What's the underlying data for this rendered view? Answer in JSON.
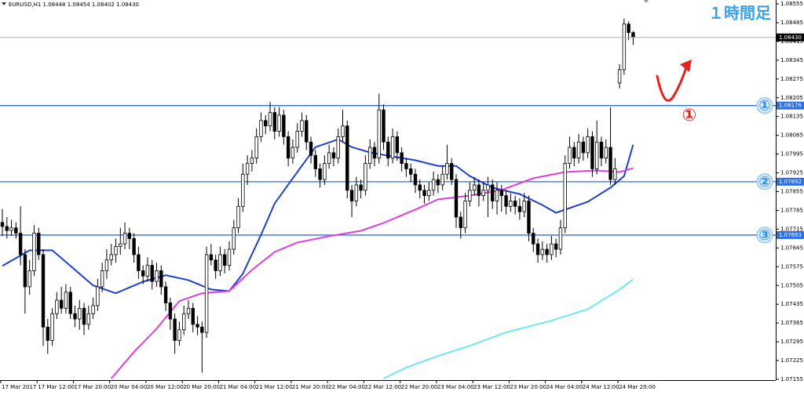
{
  "chart_data": {
    "type": "candlestick",
    "header": "EURUSD,H1  1.08448 1.08454 1.08402 1.08430",
    "annotation_title": "１時間足",
    "annotation_mark": "①",
    "ylim": [
      1.07155,
      1.08555
    ],
    "yticks": [
      1.08555,
      1.08485,
      1.08415,
      1.08345,
      1.08275,
      1.08205,
      1.08135,
      1.08065,
      1.07995,
      1.07925,
      1.07855,
      1.07785,
      1.07715,
      1.07645,
      1.07575,
      1.07505,
      1.07435,
      1.07365,
      1.07295,
      1.07225,
      1.07155
    ],
    "xlabels": [
      "17 Mar 2017",
      "17 Mar 12:00",
      "17 Mar 20:00",
      "20 Mar 04:00",
      "20 Mar 12:00",
      "20 Mar 20:00",
      "21 Mar 04:00",
      "21 Mar 12:00",
      "21 Mar 20:00",
      "22 Mar 04:00",
      "22 Mar 12:00",
      "22 Mar 20:00",
      "23 Mar 04:00",
      "23 Mar 12:00",
      "23 Mar 20:00",
      "24 Mar 04:00",
      "24 Mar 12:00",
      "24 Mar 20:00"
    ],
    "current_price": {
      "value": 1.0843,
      "label": "1.08430"
    },
    "levels": [
      1.08176,
      1.07892,
      1.07693
    ],
    "level_labels": [
      "①",
      "②",
      "③"
    ],
    "level_color": "#2f6fe0",
    "up_color": "#ffffff",
    "down_color": "#000000",
    "ohlc": [
      [
        1.0774,
        1.0779,
        1.0769,
        1.07725
      ],
      [
        1.07725,
        1.0776,
        1.0768,
        1.0771
      ],
      [
        1.0771,
        1.0775,
        1.0769,
        1.0772
      ],
      [
        1.0772,
        1.0774,
        1.0768,
        1.077
      ],
      [
        1.077,
        1.078,
        1.0758,
        1.0762
      ],
      [
        1.0762,
        1.0764,
        1.074,
        1.075
      ],
      [
        1.075,
        1.076,
        1.0747,
        1.0756
      ],
      [
        1.0756,
        1.0773,
        1.0754,
        1.077
      ],
      [
        1.077,
        1.0772,
        1.076,
        1.0762
      ],
      [
        1.0762,
        1.0764,
        1.0728,
        1.0735
      ],
      [
        1.0735,
        1.0738,
        1.0725,
        1.073
      ],
      [
        1.073,
        1.0742,
        1.0728,
        1.074
      ],
      [
        1.074,
        1.0748,
        1.0738,
        1.0745
      ],
      [
        1.0745,
        1.075,
        1.074,
        1.0742
      ],
      [
        1.0742,
        1.0751,
        1.074,
        1.0748
      ],
      [
        1.0748,
        1.075,
        1.0738,
        1.074
      ],
      [
        1.074,
        1.0743,
        1.0735,
        1.0738
      ],
      [
        1.0738,
        1.0745,
        1.0734,
        1.0742
      ],
      [
        1.0742,
        1.0744,
        1.0732,
        1.0736
      ],
      [
        1.0736,
        1.0743,
        1.0734,
        1.074
      ],
      [
        1.074,
        1.0746,
        1.0738,
        1.0743
      ],
      [
        1.0743,
        1.0753,
        1.0741,
        1.075
      ],
      [
        1.075,
        1.0759,
        1.0748,
        1.0756
      ],
      [
        1.0756,
        1.0764,
        1.0753,
        1.076
      ],
      [
        1.076,
        1.0766,
        1.0758,
        1.0762
      ],
      [
        1.0762,
        1.0768,
        1.0759,
        1.0765
      ],
      [
        1.0765,
        1.0772,
        1.0762,
        1.0766
      ],
      [
        1.0766,
        1.0774,
        1.0764,
        1.077
      ],
      [
        1.077,
        1.0772,
        1.0764,
        1.0768
      ],
      [
        1.0768,
        1.077,
        1.0759,
        1.0762
      ],
      [
        1.0762,
        1.0765,
        1.0753,
        1.0756
      ],
      [
        1.0756,
        1.0758,
        1.0751,
        1.0754
      ],
      [
        1.0754,
        1.0761,
        1.0752,
        1.0758
      ],
      [
        1.0758,
        1.076,
        1.0749,
        1.0752
      ],
      [
        1.0752,
        1.0759,
        1.075,
        1.0756
      ],
      [
        1.0756,
        1.0758,
        1.0747,
        1.075
      ],
      [
        1.075,
        1.0752,
        1.0741,
        1.0744
      ],
      [
        1.0744,
        1.0746,
        1.0734,
        1.0738
      ],
      [
        1.0738,
        1.074,
        1.0725,
        1.073
      ],
      [
        1.073,
        1.0737,
        1.0728,
        1.0734
      ],
      [
        1.0734,
        1.0743,
        1.0732,
        1.074
      ],
      [
        1.074,
        1.0745,
        1.0738,
        1.0742
      ],
      [
        1.0742,
        1.0744,
        1.0733,
        1.0736
      ],
      [
        1.0736,
        1.0739,
        1.0732,
        1.0735
      ],
      [
        1.0735,
        1.0737,
        1.0718,
        1.0733
      ],
      [
        1.0733,
        1.0765,
        1.0731,
        1.0762
      ],
      [
        1.0762,
        1.0766,
        1.0758,
        1.076
      ],
      [
        1.076,
        1.0762,
        1.0753,
        1.0756
      ],
      [
        1.0756,
        1.0765,
        1.0754,
        1.0762
      ],
      [
        1.0762,
        1.0764,
        1.0755,
        1.0758
      ],
      [
        1.0758,
        1.0767,
        1.0756,
        1.0764
      ],
      [
        1.0764,
        1.0775,
        1.0762,
        1.0772
      ],
      [
        1.0772,
        1.0783,
        1.077,
        1.078
      ],
      [
        1.078,
        1.0796,
        1.0778,
        1.0792
      ],
      [
        1.0792,
        1.0799,
        1.0788,
        1.0796
      ],
      [
        1.0796,
        1.0801,
        1.0793,
        1.0798
      ],
      [
        1.0798,
        1.0809,
        1.0796,
        1.0806
      ],
      [
        1.0806,
        1.0815,
        1.0804,
        1.0812
      ],
      [
        1.0812,
        1.0814,
        1.0807,
        1.081
      ],
      [
        1.081,
        1.0819,
        1.0808,
        1.0815
      ],
      [
        1.0815,
        1.0817,
        1.0805,
        1.0808
      ],
      [
        1.0808,
        1.0817,
        1.0806,
        1.0814
      ],
      [
        1.0814,
        1.0816,
        1.0803,
        1.0806
      ],
      [
        1.0806,
        1.0808,
        1.0795,
        1.0798
      ],
      [
        1.0798,
        1.0805,
        1.0796,
        1.0802
      ],
      [
        1.0802,
        1.0811,
        1.08,
        1.0808
      ],
      [
        1.0808,
        1.0815,
        1.0806,
        1.0812
      ],
      [
        1.0812,
        1.0814,
        1.0801,
        1.0804
      ],
      [
        1.0804,
        1.0806,
        1.0796,
        1.0799
      ],
      [
        1.0799,
        1.0801,
        1.0791,
        1.0794
      ],
      [
        1.0794,
        1.0796,
        1.0787,
        1.079
      ],
      [
        1.079,
        1.0799,
        1.0788,
        1.0796
      ],
      [
        1.0796,
        1.0803,
        1.0794,
        1.08
      ],
      [
        1.08,
        1.0802,
        1.0795,
        1.0798
      ],
      [
        1.0798,
        1.0809,
        1.0796,
        1.0806
      ],
      [
        1.0806,
        1.0816,
        1.0804,
        1.081
      ],
      [
        1.081,
        1.0812,
        1.0783,
        1.0786
      ],
      [
        1.0786,
        1.0788,
        1.0776,
        1.0782
      ],
      [
        1.0782,
        1.0791,
        1.078,
        1.0788
      ],
      [
        1.0788,
        1.079,
        1.0783,
        1.0786
      ],
      [
        1.0786,
        1.0799,
        1.0784,
        1.0796
      ],
      [
        1.0796,
        1.0805,
        1.0794,
        1.0802
      ],
      [
        1.0802,
        1.0804,
        1.0795,
        1.0798
      ],
      [
        1.0798,
        1.0822,
        1.0796,
        1.0816
      ],
      [
        1.0816,
        1.0818,
        1.0801,
        1.0804
      ],
      [
        1.0804,
        1.0806,
        1.0795,
        1.0798
      ],
      [
        1.0798,
        1.0809,
        1.0796,
        1.0806
      ],
      [
        1.0806,
        1.0808,
        1.0797,
        1.08
      ],
      [
        1.08,
        1.0802,
        1.0793,
        1.0796
      ],
      [
        1.0796,
        1.0798,
        1.0791,
        1.0794
      ],
      [
        1.0794,
        1.0796,
        1.0789,
        1.0792
      ],
      [
        1.0792,
        1.0794,
        1.0785,
        1.0788
      ],
      [
        1.0788,
        1.079,
        1.0783,
        1.0786
      ],
      [
        1.0786,
        1.0788,
        1.0781,
        1.0784
      ],
      [
        1.0784,
        1.0789,
        1.0782,
        1.0786
      ],
      [
        1.0786,
        1.0793,
        1.0784,
        1.079
      ],
      [
        1.079,
        1.0792,
        1.0785,
        1.0788
      ],
      [
        1.0788,
        1.0795,
        1.0786,
        1.0792
      ],
      [
        1.0792,
        1.0803,
        1.079,
        1.0796
      ],
      [
        1.0796,
        1.0798,
        1.0788,
        1.079
      ],
      [
        1.079,
        1.0792,
        1.0772,
        1.0776
      ],
      [
        1.0776,
        1.0778,
        1.0768,
        1.0772
      ],
      [
        1.0772,
        1.0785,
        1.077,
        1.0782
      ],
      [
        1.0782,
        1.0789,
        1.078,
        1.0786
      ],
      [
        1.0786,
        1.0791,
        1.0784,
        1.0788
      ],
      [
        1.0788,
        1.079,
        1.078,
        1.0784
      ],
      [
        1.0784,
        1.0789,
        1.0782,
        1.0786
      ],
      [
        1.0786,
        1.0791,
        1.0776,
        1.0788
      ],
      [
        1.0788,
        1.079,
        1.0779,
        1.0782
      ],
      [
        1.0782,
        1.0789,
        1.0777,
        1.0786
      ],
      [
        1.0786,
        1.0788,
        1.0778,
        1.0784
      ],
      [
        1.0784,
        1.0786,
        1.0777,
        1.078
      ],
      [
        1.078,
        1.0785,
        1.0778,
        1.0782
      ],
      [
        1.0782,
        1.0784,
        1.0777,
        1.078
      ],
      [
        1.078,
        1.0783,
        1.0775,
        1.0778
      ],
      [
        1.0778,
        1.0785,
        1.0776,
        1.0782
      ],
      [
        1.0782,
        1.0784,
        1.0767,
        1.077
      ],
      [
        1.077,
        1.0772,
        1.0763,
        1.0766
      ],
      [
        1.0766,
        1.0768,
        1.0759,
        1.0762
      ],
      [
        1.0762,
        1.0767,
        1.076,
        1.0764
      ],
      [
        1.0764,
        1.0766,
        1.0759,
        1.0762
      ],
      [
        1.0762,
        1.0769,
        1.076,
        1.0766
      ],
      [
        1.0766,
        1.0768,
        1.0761,
        1.0764
      ],
      [
        1.0764,
        1.0775,
        1.0762,
        1.0772
      ],
      [
        1.0772,
        1.0799,
        1.077,
        1.0796
      ],
      [
        1.0796,
        1.0806,
        1.0794,
        1.0802
      ],
      [
        1.0802,
        1.0804,
        1.0795,
        1.0798
      ],
      [
        1.0798,
        1.0807,
        1.0796,
        1.0804
      ],
      [
        1.0804,
        1.0806,
        1.0797,
        1.08
      ],
      [
        1.08,
        1.0809,
        1.0798,
        1.0806
      ],
      [
        1.0806,
        1.0808,
        1.0791,
        1.0794
      ],
      [
        1.0794,
        1.0812,
        1.0792,
        1.0804
      ],
      [
        1.0804,
        1.0806,
        1.0795,
        1.0798
      ],
      [
        1.0798,
        1.0805,
        1.0796,
        1.0802
      ],
      [
        1.0802,
        1.0817,
        1.0788,
        1.079
      ],
      [
        1.079,
        1.0798,
        1.0788,
        1.0794
      ],
      [
        1.0826,
        1.0833,
        1.0824,
        1.0831
      ],
      [
        1.0831,
        1.085,
        1.0829,
        1.0848
      ],
      [
        1.0848,
        1.0849,
        1.0842,
        1.08448
      ],
      [
        1.08448,
        1.08454,
        1.08402,
        1.0843
      ]
    ],
    "series": [
      {
        "color": "#1f3fd0",
        "x": [
          0,
          3,
          6,
          11,
          15,
          20,
          25,
          31,
          36,
          41,
          46,
          50,
          53,
          57,
          60,
          64,
          69,
          74,
          77,
          81,
          86,
          91,
          96,
          100,
          103,
          108,
          114,
          119,
          122,
          129,
          134,
          137,
          139
        ],
        "values": [
          1.07578,
          1.07607,
          1.07636,
          1.07636,
          1.07578,
          1.07505,
          1.07476,
          1.07519,
          1.07543,
          1.07525,
          1.0749,
          1.07484,
          1.07549,
          1.07694,
          1.07811,
          1.07905,
          1.08021,
          1.0805,
          1.08021,
          1.08001,
          1.07986,
          1.07972,
          1.07951,
          1.07951,
          1.07913,
          1.0787,
          1.07846,
          1.07805,
          1.07776,
          1.07817,
          1.0787,
          1.07913,
          1.0803
        ]
      },
      {
        "color": "#e03ce0",
        "x": [
          24,
          29,
          34,
          39,
          44,
          50,
          55,
          60,
          65,
          72,
          79,
          84,
          91,
          96,
          103,
          110,
          117,
          124,
          131,
          136,
          139
        ],
        "values": [
          1.07158,
          1.07257,
          1.07344,
          1.07447,
          1.07476,
          1.07484,
          1.07563,
          1.0763,
          1.07665,
          1.07689,
          1.07709,
          1.07738,
          1.07788,
          1.07826,
          1.0784,
          1.07861,
          1.07905,
          1.07928,
          1.07934,
          1.07928,
          1.07942
        ]
      },
      {
        "color": "#6ee8f0",
        "x": [
          84,
          89,
          96,
          103,
          111,
          121,
          129,
          136,
          139
        ],
        "values": [
          1.07158,
          1.07199,
          1.07242,
          1.0728,
          1.0733,
          1.07374,
          1.07417,
          1.0749,
          1.07528
        ]
      }
    ]
  }
}
